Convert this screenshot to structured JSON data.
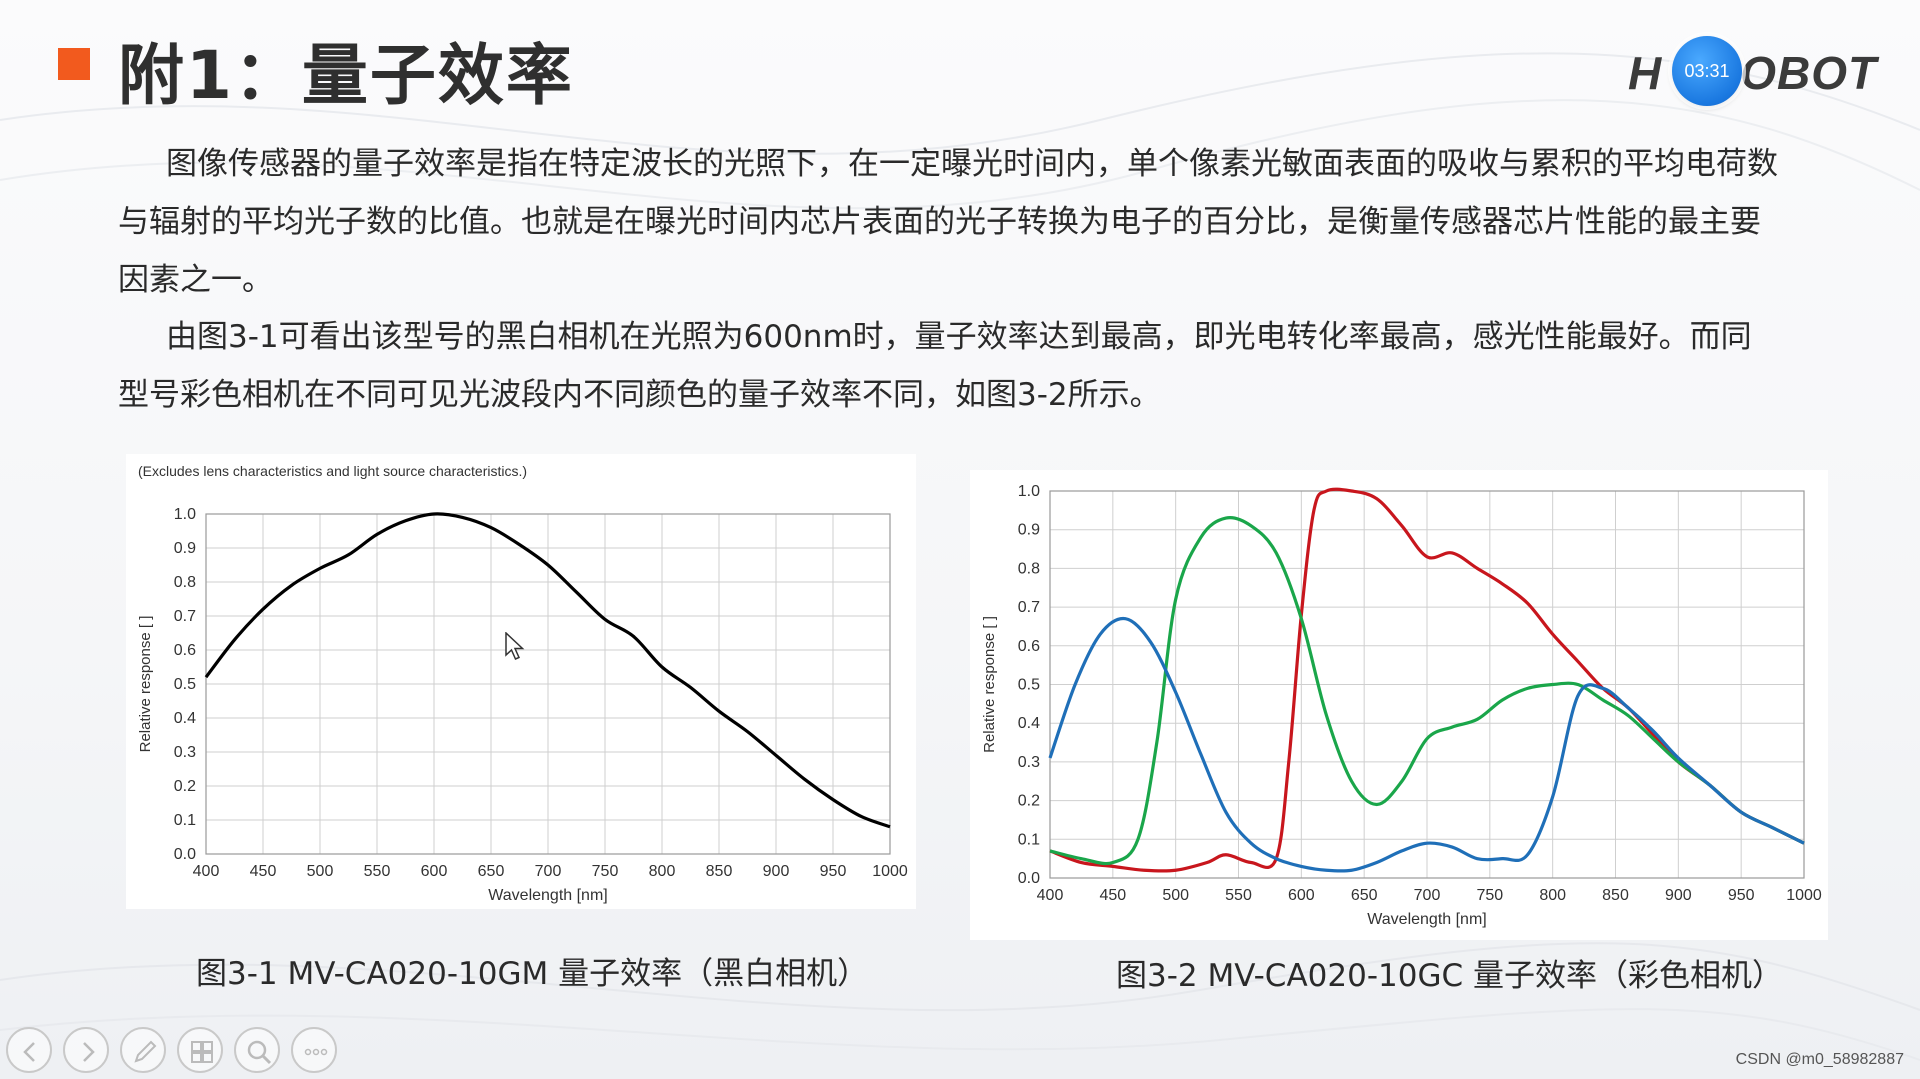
{
  "slide": {
    "title": "附1：量子效率",
    "logo": {
      "text_left": "H",
      "text_right": "OBOT",
      "timer": "03:31"
    },
    "paragraph1": "图像传感器的量子效率是指在特定波长的光照下，在一定曝光时间内，单个像素光敏面表面的吸收与累积的平均电荷数与辐射的平均光子数的比值。也就是在曝光时间内芯片表面的光子转换为电子的百分比，是衡量传感器芯片性能的最主要因素之一。",
    "paragraph2": "由图3-1可看出该型号的黑白相机在光照为600nm时，量子效率达到最高，即光电转化率最高，感光性能最好。而同型号彩色相机在不同可见光波段内不同颜色的量子效率不同，如图3-2所示。",
    "caption1": "图3-1 MV-CA020-10GM 量子效率（黑白相机）",
    "caption2": "图3-2 MV-CA020-10GC 量子效率（彩色相机）",
    "watermark": "CSDN @m0_58982887"
  },
  "toolbar": {
    "buttons": [
      {
        "name": "prev-icon"
      },
      {
        "name": "next-icon"
      },
      {
        "name": "pen-icon"
      },
      {
        "name": "slides-grid-icon"
      },
      {
        "name": "zoom-icon"
      },
      {
        "name": "more-icon"
      }
    ]
  },
  "colors": {
    "accent": "#f25a1e",
    "mono_curve": "#000000",
    "red_curve": "#c8161d",
    "green_curve": "#1aa64a",
    "blue_curve": "#1f6fb8",
    "timer": "#1a78e0"
  },
  "chart_data": [
    {
      "type": "line",
      "annotation": "(Excludes lens characteristics and light source characteristics.)",
      "xlabel": "Wavelength [nm]",
      "ylabel": "Relative response [ ]",
      "xlim": [
        400,
        1000
      ],
      "ylim": [
        0,
        1.0
      ],
      "xticks": [
        "400",
        "450",
        "500",
        "550",
        "600",
        "650",
        "700",
        "750",
        "800",
        "850",
        "900",
        "950",
        "1000"
      ],
      "yticks": [
        "0.0",
        "0.1",
        "0.2",
        "0.3",
        "0.4",
        "0.5",
        "0.6",
        "0.7",
        "0.8",
        "0.9",
        "1.0"
      ],
      "grid": true,
      "series": [
        {
          "color": "#000000",
          "x": [
            400,
            425,
            450,
            475,
            500,
            525,
            550,
            575,
            600,
            625,
            650,
            675,
            700,
            725,
            750,
            775,
            800,
            825,
            850,
            875,
            900,
            925,
            950,
            975,
            1000
          ],
          "y": [
            0.52,
            0.63,
            0.72,
            0.79,
            0.84,
            0.88,
            0.94,
            0.98,
            1.0,
            0.99,
            0.96,
            0.91,
            0.85,
            0.77,
            0.69,
            0.64,
            0.55,
            0.49,
            0.42,
            0.36,
            0.29,
            0.22,
            0.16,
            0.11,
            0.08
          ]
        }
      ]
    },
    {
      "type": "line",
      "xlabel": "Wavelength [nm]",
      "ylabel": "Relative response [ ]",
      "xlim": [
        400,
        1000
      ],
      "ylim": [
        0,
        1.0
      ],
      "xticks": [
        "400",
        "450",
        "500",
        "550",
        "600",
        "650",
        "700",
        "750",
        "800",
        "850",
        "900",
        "950",
        "1000"
      ],
      "yticks": [
        "0.0",
        "0.1",
        "0.2",
        "0.3",
        "0.4",
        "0.5",
        "0.6",
        "0.7",
        "0.8",
        "0.9",
        "1.0"
      ],
      "grid": true,
      "series": [
        {
          "color": "#c8161d",
          "x": [
            400,
            425,
            450,
            475,
            500,
            525,
            540,
            560,
            580,
            590,
            600,
            610,
            620,
            640,
            660,
            680,
            700,
            720,
            740,
            760,
            780,
            800,
            820,
            840,
            860,
            880,
            900,
            925,
            950,
            975,
            1000
          ],
          "y": [
            0.07,
            0.04,
            0.03,
            0.02,
            0.02,
            0.04,
            0.06,
            0.04,
            0.05,
            0.3,
            0.68,
            0.95,
            1.0,
            1.0,
            0.98,
            0.91,
            0.83,
            0.84,
            0.8,
            0.76,
            0.71,
            0.63,
            0.56,
            0.49,
            0.44,
            0.37,
            0.3,
            0.24,
            0.17,
            0.13,
            0.09
          ]
        },
        {
          "color": "#1aa64a",
          "x": [
            400,
            425,
            450,
            470,
            485,
            500,
            520,
            540,
            560,
            580,
            600,
            620,
            640,
            660,
            680,
            700,
            720,
            740,
            760,
            780,
            800,
            820,
            840,
            860,
            880,
            900,
            925,
            950,
            975,
            1000
          ],
          "y": [
            0.07,
            0.05,
            0.04,
            0.1,
            0.35,
            0.72,
            0.88,
            0.93,
            0.91,
            0.84,
            0.67,
            0.42,
            0.25,
            0.19,
            0.25,
            0.36,
            0.39,
            0.41,
            0.46,
            0.49,
            0.5,
            0.5,
            0.46,
            0.42,
            0.36,
            0.3,
            0.24,
            0.17,
            0.13,
            0.09
          ]
        },
        {
          "color": "#1f6fb8",
          "x": [
            400,
            420,
            440,
            460,
            480,
            500,
            520,
            540,
            560,
            580,
            600,
            620,
            640,
            660,
            680,
            700,
            720,
            740,
            760,
            780,
            800,
            820,
            840,
            860,
            880,
            900,
            925,
            950,
            975,
            1000
          ],
          "y": [
            0.31,
            0.5,
            0.63,
            0.67,
            0.61,
            0.48,
            0.32,
            0.17,
            0.09,
            0.05,
            0.03,
            0.02,
            0.02,
            0.04,
            0.07,
            0.09,
            0.08,
            0.05,
            0.05,
            0.06,
            0.21,
            0.47,
            0.49,
            0.44,
            0.38,
            0.31,
            0.24,
            0.17,
            0.13,
            0.09
          ]
        }
      ]
    }
  ]
}
